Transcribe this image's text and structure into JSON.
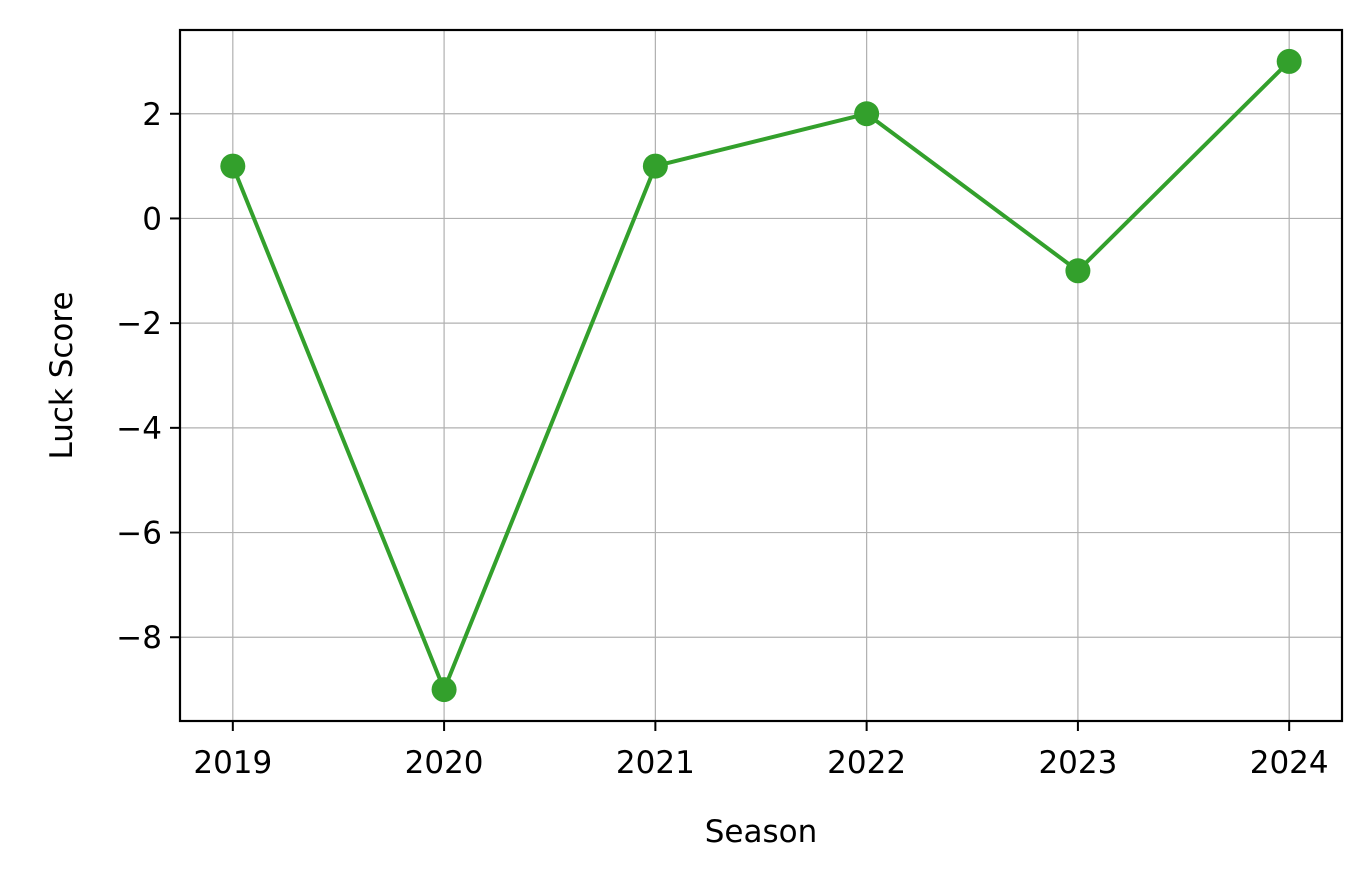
{
  "chart_data": {
    "type": "line",
    "title": "",
    "xlabel": "Season",
    "ylabel": "Luck Score",
    "categories": [
      "2019",
      "2020",
      "2021",
      "2022",
      "2023",
      "2024"
    ],
    "series": [
      {
        "values": [
          1,
          -9,
          1,
          2,
          -1,
          3
        ]
      }
    ],
    "xlim": [
      2018.75,
      2024.25
    ],
    "ylim": [
      -9.6,
      3.6
    ],
    "yticks": [
      2,
      0,
      -2,
      -4,
      -6,
      -8
    ],
    "ytick_labels": [
      "2",
      "0",
      "−2",
      "−4",
      "−6",
      "−8"
    ],
    "grid": true,
    "colors": {
      "line": "#33a02c",
      "grid": "#b0b0b0",
      "axes": "#000000"
    }
  }
}
